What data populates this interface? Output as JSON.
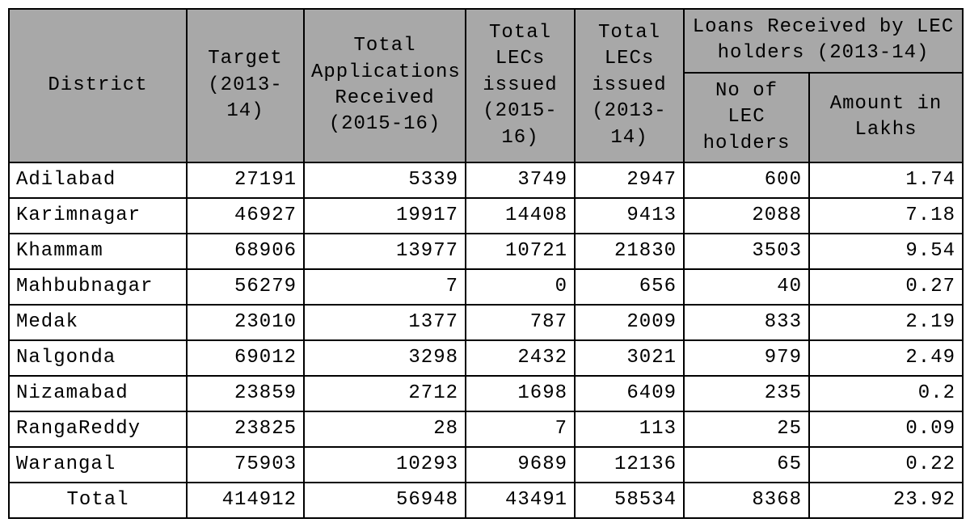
{
  "table": {
    "type": "table",
    "background_color": "#ffffff",
    "header_bg": "#a8a8a8",
    "border_color": "#000000",
    "font_family": "Courier New",
    "font_size_pt": 18,
    "headers": {
      "district": "District",
      "target": "Target (2013-14)",
      "apps": "Total Applications Received (2015-16)",
      "lecs_1516": "Total LECs issued (2015-16)",
      "lecs_1314": "Total LECs issued (2013-14)",
      "loans_group": "Loans Received by LEC holders (2013-14)",
      "holders": "No of LEC holders",
      "amount": "Amount in Lakhs"
    },
    "columns": [
      "district",
      "target",
      "apps",
      "lecs_1516",
      "lecs_1314",
      "holders",
      "amount"
    ],
    "column_align": [
      "left",
      "right",
      "right",
      "right",
      "right",
      "right",
      "right"
    ],
    "rows": [
      {
        "district": "Adilabad",
        "target": "27191",
        "apps": "5339",
        "lecs_1516": "3749",
        "lecs_1314": "2947",
        "holders": "600",
        "amount": "1.74"
      },
      {
        "district": "Karimnagar",
        "target": "46927",
        "apps": "19917",
        "lecs_1516": "14408",
        "lecs_1314": "9413",
        "holders": "2088",
        "amount": "7.18"
      },
      {
        "district": "Khammam",
        "target": "68906",
        "apps": "13977",
        "lecs_1516": "10721",
        "lecs_1314": "21830",
        "holders": "3503",
        "amount": "9.54"
      },
      {
        "district": "Mahbubnagar",
        "target": "56279",
        "apps": "7",
        "lecs_1516": "0",
        "lecs_1314": "656",
        "holders": "40",
        "amount": "0.27"
      },
      {
        "district": "Medak",
        "target": "23010",
        "apps": "1377",
        "lecs_1516": "787",
        "lecs_1314": "2009",
        "holders": "833",
        "amount": "2.19"
      },
      {
        "district": "Nalgonda",
        "target": "69012",
        "apps": "3298",
        "lecs_1516": "2432",
        "lecs_1314": "3021",
        "holders": "979",
        "amount": "2.49"
      },
      {
        "district": "Nizamabad",
        "target": "23859",
        "apps": "2712",
        "lecs_1516": "1698",
        "lecs_1314": "6409",
        "holders": "235",
        "amount": "0.2"
      },
      {
        "district": "RangaReddy",
        "target": "23825",
        "apps": "28",
        "lecs_1516": "7",
        "lecs_1314": "113",
        "holders": "25",
        "amount": "0.09"
      },
      {
        "district": "Warangal",
        "target": "75903",
        "apps": "10293",
        "lecs_1516": "9689",
        "lecs_1314": "12136",
        "holders": "65",
        "amount": "0.22"
      }
    ],
    "total_row": {
      "label": "Total",
      "target": "414912",
      "apps": "56948",
      "lecs_1516": "43491",
      "lecs_1314": "58534",
      "holders": "8368",
      "amount": "23.92"
    }
  }
}
